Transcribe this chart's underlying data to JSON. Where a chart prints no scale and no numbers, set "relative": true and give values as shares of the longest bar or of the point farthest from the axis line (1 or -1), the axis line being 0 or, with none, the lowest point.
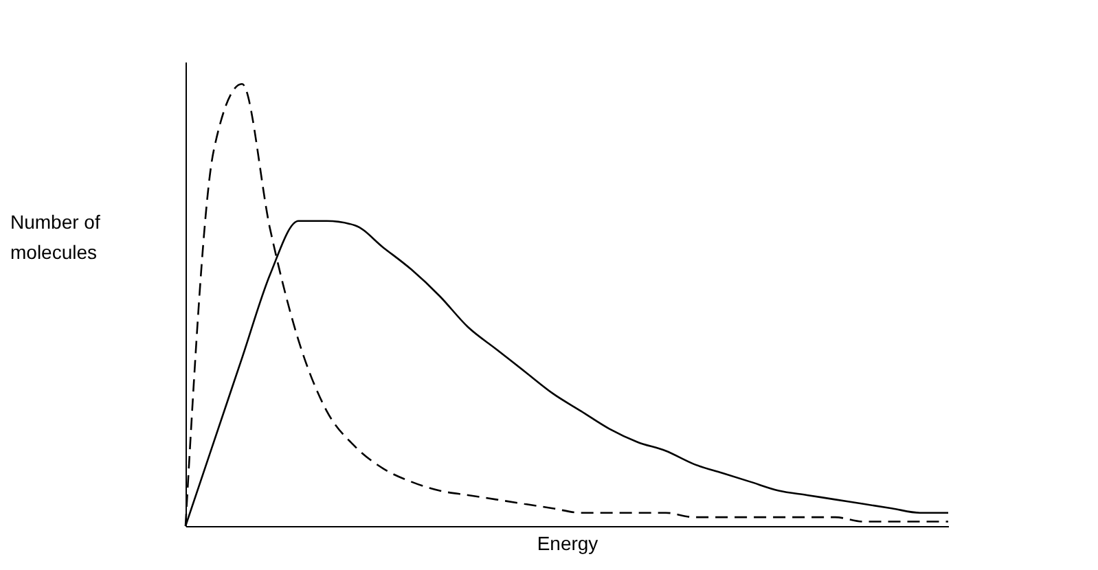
{
  "chart_data": {
    "type": "line",
    "xlabel": "Energy",
    "ylabel": "Number of\nmolecules",
    "relative": true,
    "categories": [
      null,
      null,
      null,
      null,
      null,
      null,
      null,
      null,
      null,
      null,
      null,
      null,
      null,
      null,
      null,
      null,
      null,
      null,
      null,
      null,
      null,
      null,
      null,
      null,
      null,
      null,
      null,
      null
    ],
    "series": [
      {
        "color": "#000000",
        "line_style": "dashed",
        "values": [
          0,
          0.85,
          1,
          0.67,
          0.42,
          0.26,
          0.18,
          0.13,
          0.1,
          0.08,
          0.07,
          0.06,
          0.05,
          0.04,
          0.03,
          0.03,
          0.03,
          0.03,
          0.02,
          0.02,
          0.02,
          0.02,
          0.02,
          0.02,
          0.01,
          0.01,
          0.01,
          0.01
        ]
      },
      {
        "color": "#000000",
        "line_style": "solid",
        "values": [
          0,
          0.19,
          0.38,
          0.57,
          0.69,
          0.69,
          0.68,
          0.63,
          0.58,
          0.52,
          0.45,
          0.4,
          0.35,
          0.3,
          0.26,
          0.22,
          0.19,
          0.17,
          0.14,
          0.12,
          0.1,
          0.08,
          0.07,
          0.06,
          0.05,
          0.04,
          0.03,
          0.03
        ]
      }
    ]
  }
}
